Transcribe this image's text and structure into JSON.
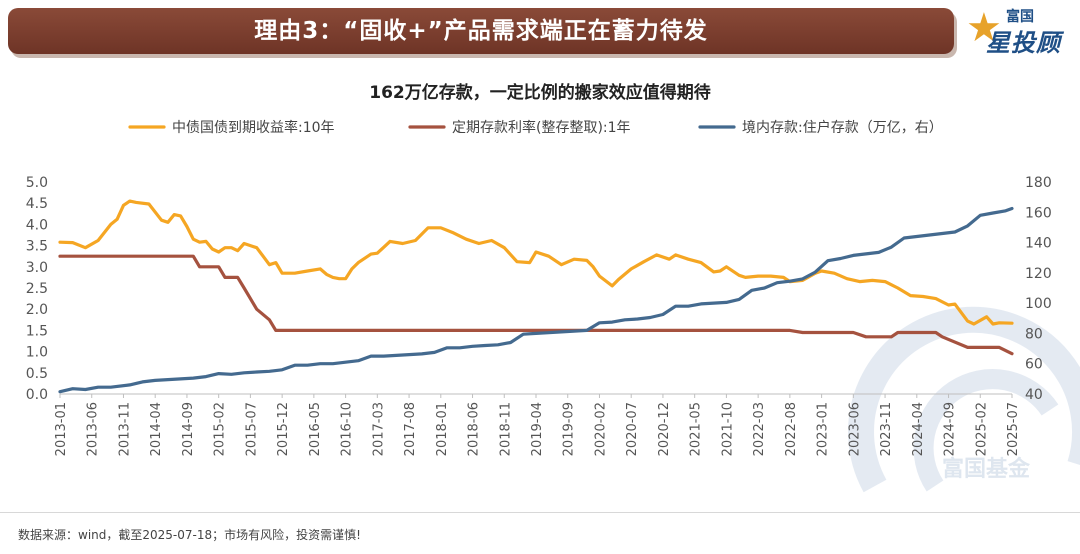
{
  "header": {
    "banner_title": "理由3：“固收+”产品需求端正在蓄力待发",
    "logo_small": "富国",
    "logo_big": "星投顾",
    "watermark": "富国基金"
  },
  "footer": {
    "source": "数据来源：wind，截至2025-07-18；市场有风险，投资需谨慎!"
  },
  "colors": {
    "banner": "#7b3e2f",
    "bond_yield": "#f5a623",
    "deposit_rate": "#a5523f",
    "deposits": "#446a8f"
  },
  "chart_data": {
    "type": "line",
    "title": "162万亿存款，一定比例的搬家效应值得期待",
    "legend_position": "top",
    "grid": false,
    "y_left": {
      "min": 0,
      "max": 5,
      "ticks": [
        "0.0",
        "0.5",
        "1.0",
        "1.5",
        "2.0",
        "2.5",
        "3.0",
        "3.5",
        "4.0",
        "4.5",
        "5.0"
      ]
    },
    "y_right": {
      "min": 40,
      "max": 180,
      "ticks": [
        "40",
        "60",
        "80",
        "100",
        "120",
        "140",
        "160",
        "180"
      ]
    },
    "x_range": [
      "2013-01",
      "2025-07"
    ],
    "x_ticks": [
      "2013-01",
      "2013-06",
      "2013-11",
      "2014-04",
      "2014-09",
      "2015-02",
      "2015-07",
      "2015-12",
      "2016-05",
      "2016-10",
      "2017-03",
      "2017-08",
      "2018-01",
      "2018-06",
      "2018-11",
      "2019-04",
      "2019-09",
      "2020-02",
      "2020-07",
      "2020-12",
      "2021-05",
      "2021-10",
      "2022-03",
      "2022-08",
      "2023-01",
      "2023-06",
      "2023-11",
      "2024-04",
      "2024-09",
      "2025-02",
      "2025-07"
    ],
    "series": [
      {
        "name": "中债国债到期收益率:10年",
        "axis": "left",
        "points": [
          [
            "2013-01",
            3.58
          ],
          [
            "2013-03",
            3.57
          ],
          [
            "2013-05",
            3.45
          ],
          [
            "2013-07",
            3.62
          ],
          [
            "2013-09",
            4.0
          ],
          [
            "2013-10",
            4.12
          ],
          [
            "2013-11",
            4.45
          ],
          [
            "2013-12",
            4.55
          ],
          [
            "2014-01",
            4.52
          ],
          [
            "2014-03",
            4.48
          ],
          [
            "2014-05",
            4.1
          ],
          [
            "2014-06",
            4.05
          ],
          [
            "2014-07",
            4.23
          ],
          [
            "2014-08",
            4.2
          ],
          [
            "2014-09",
            3.95
          ],
          [
            "2014-10",
            3.65
          ],
          [
            "2014-11",
            3.58
          ],
          [
            "2014-12",
            3.6
          ],
          [
            "2015-01",
            3.42
          ],
          [
            "2015-02",
            3.35
          ],
          [
            "2015-03",
            3.45
          ],
          [
            "2015-04",
            3.45
          ],
          [
            "2015-05",
            3.38
          ],
          [
            "2015-06",
            3.55
          ],
          [
            "2015-08",
            3.45
          ],
          [
            "2015-09",
            3.25
          ],
          [
            "2015-10",
            3.05
          ],
          [
            "2015-11",
            3.1
          ],
          [
            "2015-12",
            2.85
          ],
          [
            "2016-02",
            2.85
          ],
          [
            "2016-04",
            2.9
          ],
          [
            "2016-06",
            2.95
          ],
          [
            "2016-07",
            2.82
          ],
          [
            "2016-08",
            2.75
          ],
          [
            "2016-09",
            2.72
          ],
          [
            "2016-10",
            2.72
          ],
          [
            "2016-11",
            2.95
          ],
          [
            "2016-12",
            3.1
          ],
          [
            "2017-02",
            3.3
          ],
          [
            "2017-03",
            3.32
          ],
          [
            "2017-05",
            3.6
          ],
          [
            "2017-07",
            3.55
          ],
          [
            "2017-09",
            3.62
          ],
          [
            "2017-11",
            3.92
          ],
          [
            "2018-01",
            3.92
          ],
          [
            "2018-03",
            3.8
          ],
          [
            "2018-05",
            3.65
          ],
          [
            "2018-07",
            3.55
          ],
          [
            "2018-09",
            3.62
          ],
          [
            "2018-11",
            3.45
          ],
          [
            "2019-01",
            3.12
          ],
          [
            "2019-03",
            3.1
          ],
          [
            "2019-04",
            3.35
          ],
          [
            "2019-06",
            3.25
          ],
          [
            "2019-08",
            3.05
          ],
          [
            "2019-10",
            3.18
          ],
          [
            "2019-12",
            3.15
          ],
          [
            "2020-01",
            3.0
          ],
          [
            "2020-02",
            2.78
          ],
          [
            "2020-04",
            2.55
          ],
          [
            "2020-05",
            2.7
          ],
          [
            "2020-07",
            2.95
          ],
          [
            "2020-09",
            3.12
          ],
          [
            "2020-11",
            3.28
          ],
          [
            "2021-01",
            3.18
          ],
          [
            "2021-02",
            3.28
          ],
          [
            "2021-04",
            3.18
          ],
          [
            "2021-06",
            3.1
          ],
          [
            "2021-08",
            2.88
          ],
          [
            "2021-09",
            2.9
          ],
          [
            "2021-10",
            3.0
          ],
          [
            "2021-12",
            2.8
          ],
          [
            "2022-01",
            2.75
          ],
          [
            "2022-03",
            2.78
          ],
          [
            "2022-05",
            2.78
          ],
          [
            "2022-07",
            2.75
          ],
          [
            "2022-08",
            2.65
          ],
          [
            "2022-10",
            2.68
          ],
          [
            "2022-12",
            2.85
          ],
          [
            "2023-01",
            2.9
          ],
          [
            "2023-03",
            2.85
          ],
          [
            "2023-05",
            2.72
          ],
          [
            "2023-07",
            2.65
          ],
          [
            "2023-09",
            2.68
          ],
          [
            "2023-11",
            2.65
          ],
          [
            "2024-01",
            2.5
          ],
          [
            "2024-03",
            2.32
          ],
          [
            "2024-05",
            2.3
          ],
          [
            "2024-07",
            2.25
          ],
          [
            "2024-09",
            2.1
          ],
          [
            "2024-10",
            2.12
          ],
          [
            "2024-12",
            1.72
          ],
          [
            "2025-01",
            1.65
          ],
          [
            "2025-03",
            1.82
          ],
          [
            "2025-04",
            1.65
          ],
          [
            "2025-05",
            1.68
          ],
          [
            "2025-07",
            1.67
          ]
        ]
      },
      {
        "name": "定期存款利率(整存整取):1年",
        "axis": "left",
        "points": [
          [
            "2013-01",
            3.25
          ],
          [
            "2014-10",
            3.25
          ],
          [
            "2014-11",
            3.0
          ],
          [
            "2015-02",
            3.0
          ],
          [
            "2015-03",
            2.75
          ],
          [
            "2015-05",
            2.75
          ],
          [
            "2015-06",
            2.5
          ],
          [
            "2015-07",
            2.25
          ],
          [
            "2015-08",
            2.0
          ],
          [
            "2015-10",
            1.75
          ],
          [
            "2015-11",
            1.5
          ],
          [
            "2022-08",
            1.5
          ],
          [
            "2022-10",
            1.45
          ],
          [
            "2023-06",
            1.45
          ],
          [
            "2023-08",
            1.35
          ],
          [
            "2023-12",
            1.35
          ],
          [
            "2024-01",
            1.45
          ],
          [
            "2024-07",
            1.45
          ],
          [
            "2024-08",
            1.35
          ],
          [
            "2024-12",
            1.1
          ],
          [
            "2025-05",
            1.1
          ],
          [
            "2025-07",
            0.95
          ]
        ]
      },
      {
        "name": "境内存款:住户存款（万亿，右）",
        "axis": "right",
        "points": [
          [
            "2013-01",
            41.5
          ],
          [
            "2013-03",
            43.5
          ],
          [
            "2013-05",
            43
          ],
          [
            "2013-07",
            44.5
          ],
          [
            "2013-09",
            44.5
          ],
          [
            "2013-12",
            46
          ],
          [
            "2014-02",
            48
          ],
          [
            "2014-04",
            49
          ],
          [
            "2014-06",
            49.5
          ],
          [
            "2014-08",
            50
          ],
          [
            "2014-10",
            50.5
          ],
          [
            "2014-12",
            51.5
          ],
          [
            "2015-02",
            53.5
          ],
          [
            "2015-04",
            53
          ],
          [
            "2015-06",
            54
          ],
          [
            "2015-08",
            54.5
          ],
          [
            "2015-10",
            55
          ],
          [
            "2015-12",
            56
          ],
          [
            "2016-02",
            59
          ],
          [
            "2016-04",
            59
          ],
          [
            "2016-06",
            60
          ],
          [
            "2016-08",
            60
          ],
          [
            "2016-10",
            61
          ],
          [
            "2016-12",
            62
          ],
          [
            "2017-02",
            65
          ],
          [
            "2017-04",
            65
          ],
          [
            "2017-06",
            65.5
          ],
          [
            "2017-08",
            66
          ],
          [
            "2017-10",
            66.5
          ],
          [
            "2017-12",
            67.5
          ],
          [
            "2018-02",
            70.5
          ],
          [
            "2018-04",
            70.5
          ],
          [
            "2018-06",
            71.5
          ],
          [
            "2018-08",
            72
          ],
          [
            "2018-10",
            72.5
          ],
          [
            "2018-12",
            74
          ],
          [
            "2019-02",
            79.5
          ],
          [
            "2019-04",
            80
          ],
          [
            "2019-06",
            80.5
          ],
          [
            "2019-08",
            81
          ],
          [
            "2019-10",
            81.5
          ],
          [
            "2019-12",
            82
          ],
          [
            "2020-02",
            87
          ],
          [
            "2020-04",
            87.5
          ],
          [
            "2020-06",
            89
          ],
          [
            "2020-08",
            89.5
          ],
          [
            "2020-10",
            90.5
          ],
          [
            "2020-12",
            92.5
          ],
          [
            "2021-02",
            98
          ],
          [
            "2021-04",
            98
          ],
          [
            "2021-06",
            99.5
          ],
          [
            "2021-08",
            100
          ],
          [
            "2021-10",
            100.5
          ],
          [
            "2021-12",
            102.5
          ],
          [
            "2022-02",
            108.5
          ],
          [
            "2022-04",
            110
          ],
          [
            "2022-06",
            113.5
          ],
          [
            "2022-08",
            114.5
          ],
          [
            "2022-10",
            116
          ],
          [
            "2022-12",
            120.5
          ],
          [
            "2023-02",
            128
          ],
          [
            "2023-04",
            129.5
          ],
          [
            "2023-06",
            131.5
          ],
          [
            "2023-08",
            132.5
          ],
          [
            "2023-10",
            133.5
          ],
          [
            "2023-12",
            137
          ],
          [
            "2024-02",
            143
          ],
          [
            "2024-04",
            144
          ],
          [
            "2024-06",
            145
          ],
          [
            "2024-08",
            146
          ],
          [
            "2024-10",
            147
          ],
          [
            "2024-12",
            151
          ],
          [
            "2025-02",
            158
          ],
          [
            "2025-04",
            159.5
          ],
          [
            "2025-06",
            161
          ],
          [
            "2025-07",
            162.5
          ]
        ]
      }
    ]
  }
}
